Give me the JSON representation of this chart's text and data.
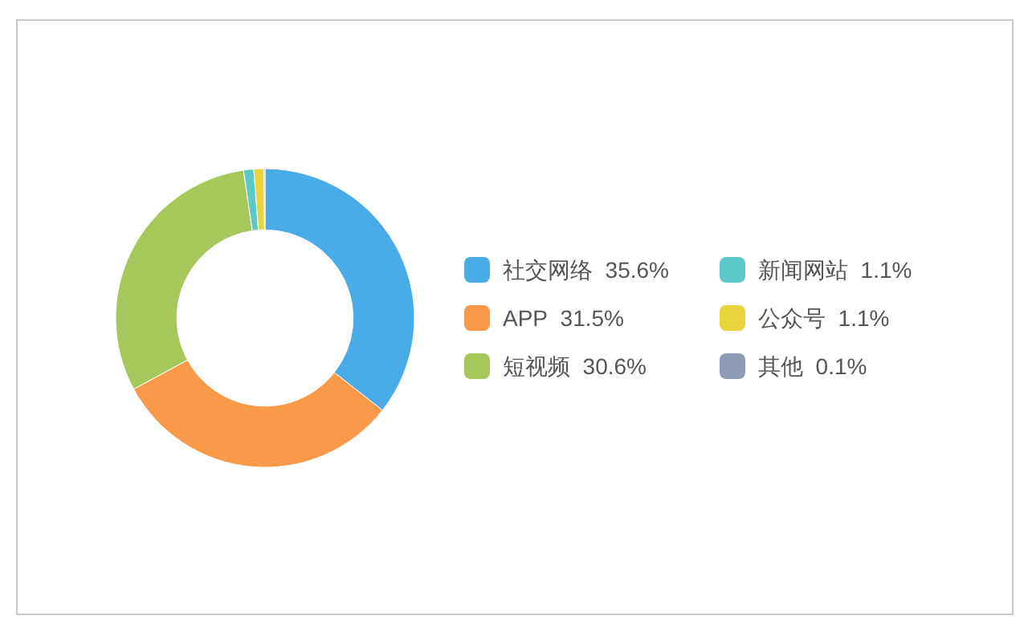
{
  "chart_data": {
    "type": "donut",
    "categories": [
      "社交网络",
      "APP",
      "短视频",
      "新闻网站",
      "公众号",
      "其他"
    ],
    "values": [
      35.6,
      31.5,
      30.6,
      1.1,
      1.1,
      0.1
    ],
    "colors": [
      "#4aabe9",
      "#f89a4a",
      "#a6c85a",
      "#5cc8c8",
      "#e8d43c",
      "#8f9bb3"
    ],
    "value_labels": [
      "35.6%",
      "31.5%",
      "30.6%",
      "1.1%",
      "1.1%",
      "0.1%"
    ],
    "legend": "right"
  }
}
